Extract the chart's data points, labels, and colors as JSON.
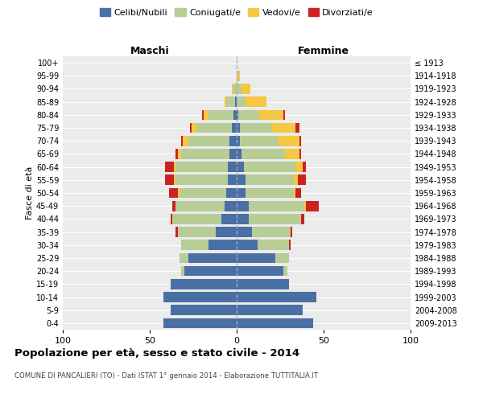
{
  "age_groups_bottom_to_top": [
    "0-4",
    "5-9",
    "10-14",
    "15-19",
    "20-24",
    "25-29",
    "30-34",
    "35-39",
    "40-44",
    "45-49",
    "50-54",
    "55-59",
    "60-64",
    "65-69",
    "70-74",
    "75-79",
    "80-84",
    "85-89",
    "90-94",
    "95-99",
    "100+"
  ],
  "birth_years_bottom_to_top": [
    "2009-2013",
    "2004-2008",
    "1999-2003",
    "1994-1998",
    "1989-1993",
    "1984-1988",
    "1979-1983",
    "1974-1978",
    "1969-1973",
    "1964-1968",
    "1959-1963",
    "1954-1958",
    "1949-1953",
    "1944-1948",
    "1939-1943",
    "1934-1938",
    "1929-1933",
    "1924-1928",
    "1919-1923",
    "1914-1918",
    "≤ 1913"
  ],
  "maschi": {
    "celibi": [
      42,
      38,
      42,
      38,
      30,
      28,
      16,
      12,
      9,
      7,
      6,
      5,
      5,
      4,
      4,
      3,
      2,
      1,
      0,
      0,
      0
    ],
    "coniugati": [
      0,
      0,
      0,
      0,
      2,
      5,
      16,
      22,
      28,
      28,
      27,
      30,
      30,
      28,
      24,
      20,
      14,
      5,
      2,
      0,
      0
    ],
    "vedovi": [
      0,
      0,
      0,
      0,
      0,
      0,
      0,
      0,
      0,
      0,
      1,
      1,
      1,
      2,
      3,
      3,
      3,
      1,
      1,
      0,
      0
    ],
    "divorziati": [
      0,
      0,
      0,
      0,
      0,
      0,
      0,
      1,
      1,
      2,
      5,
      5,
      5,
      1,
      1,
      1,
      1,
      0,
      0,
      0,
      0
    ]
  },
  "femmine": {
    "nubili": [
      44,
      38,
      46,
      30,
      27,
      22,
      12,
      9,
      7,
      7,
      5,
      5,
      4,
      3,
      2,
      2,
      1,
      0,
      0,
      0,
      0
    ],
    "coniugate": [
      0,
      0,
      0,
      0,
      2,
      8,
      18,
      22,
      30,
      32,
      28,
      28,
      30,
      25,
      22,
      18,
      12,
      5,
      3,
      1,
      0
    ],
    "vedove": [
      0,
      0,
      0,
      0,
      0,
      0,
      0,
      0,
      0,
      1,
      1,
      2,
      4,
      8,
      12,
      14,
      14,
      12,
      5,
      1,
      0
    ],
    "divorziate": [
      0,
      0,
      0,
      0,
      0,
      0,
      1,
      1,
      2,
      7,
      3,
      5,
      2,
      1,
      1,
      2,
      1,
      0,
      0,
      0,
      0
    ]
  },
  "colors": {
    "celibi_nubili": "#4a6fa5",
    "coniugati": "#b8cc96",
    "vedovi": "#f5c842",
    "divorziati": "#cc2222"
  },
  "xlim": 100,
  "title": "Popolazione per età, sesso e stato civile - 2014",
  "subtitle": "COMUNE DI PANCALIERI (TO) - Dati ISTAT 1° gennaio 2014 - Elaborazione TUTTITALIA.IT",
  "ylabel_left": "Fasce di età",
  "xlabel_maschi": "Maschi",
  "xlabel_femmine": "Femmine",
  "legend_labels": [
    "Celibi/Nubili",
    "Coniugati/e",
    "Vedovi/e",
    "Divorziati/e"
  ]
}
